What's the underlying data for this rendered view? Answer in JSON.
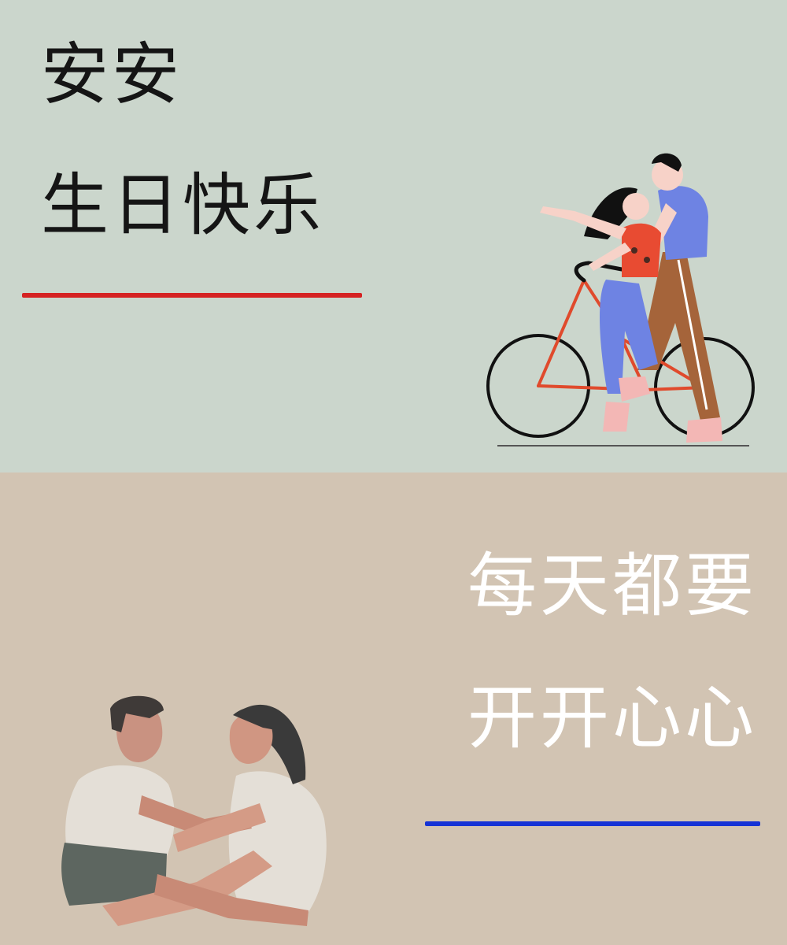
{
  "top_panel": {
    "line1": "安安",
    "line2": "生日快乐",
    "background": "#cbd6cc",
    "divider_color": "#d52222",
    "illustration": "couple-riding-bicycle"
  },
  "bottom_panel": {
    "line1": "每天都要",
    "line2": "开开心心",
    "background": "#d2c4b3",
    "divider_color": "#1533d6",
    "illustration": "couple-sitting-facing-each-other"
  }
}
